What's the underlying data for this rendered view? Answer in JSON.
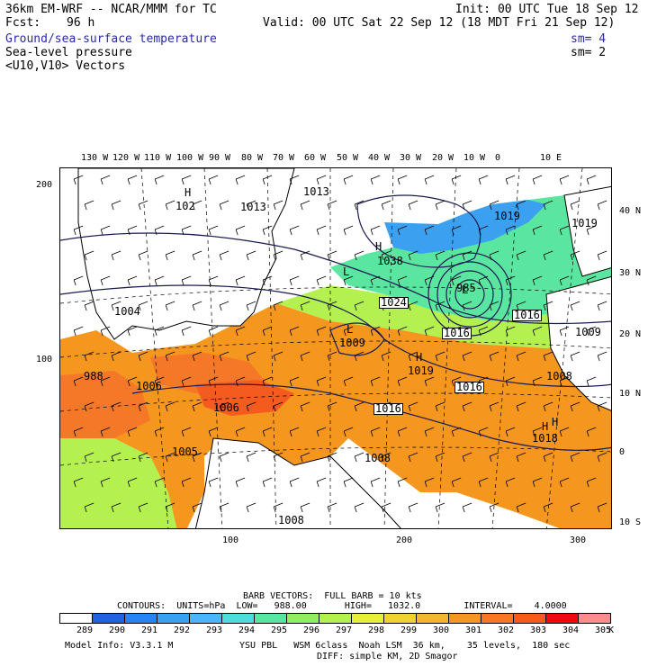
{
  "header": {
    "model": "36km EM-WRF -- NCAR/MMM for TC",
    "init": "Init: 00 UTC Tue 18 Sep 12",
    "fcst_label": "Fcst:",
    "fcst_value": "96 h",
    "valid": "Valid: 00 UTC Sat 22 Sep 12 (18 MDT Fri 21 Sep 12)",
    "fields": [
      {
        "name": "Ground/sea-surface temperature",
        "sm": "sm= 4",
        "color": "#2a2aa8"
      },
      {
        "name": "Sea-level pressure",
        "sm": "sm= 2"
      },
      {
        "name": "<U10,V10> Vectors"
      }
    ]
  },
  "axes": {
    "top_lon": [
      "130 W",
      "120 W",
      "110 W",
      "100 W",
      "90 W",
      "80 W",
      "70 W",
      "60 W",
      "50 W",
      "40 W",
      "30 W",
      "20 W",
      "10 W",
      "0",
      "10 E"
    ],
    "right_lat": [
      "40 N",
      "30 N",
      "20 N",
      "10 N",
      "0",
      "10 S"
    ],
    "left_grid": [
      "200",
      "100"
    ],
    "bottom_grid": [
      "100",
      "200",
      "300"
    ]
  },
  "pressure_labels": [
    {
      "text": "1013",
      "type": "value"
    },
    {
      "text": "1013",
      "type": "value"
    },
    {
      "text": "102",
      "type": "value"
    },
    {
      "text": "1019",
      "type": "value"
    },
    {
      "text": "1019",
      "type": "value"
    },
    {
      "text": "1004",
      "type": "value"
    },
    {
      "text": "988",
      "type": "value"
    },
    {
      "text": "1006",
      "type": "value"
    },
    {
      "text": "1006",
      "type": "value"
    },
    {
      "text": "1005",
      "type": "value"
    },
    {
      "text": "1008",
      "type": "value"
    },
    {
      "text": "1008",
      "type": "value"
    },
    {
      "text": "1009",
      "type": "value"
    },
    {
      "text": "1009",
      "type": "value"
    },
    {
      "text": "1024",
      "type": "boxed"
    },
    {
      "text": "1016",
      "type": "boxed"
    },
    {
      "text": "1016",
      "type": "boxed"
    },
    {
      "text": "1016",
      "type": "boxed"
    },
    {
      "text": "1016",
      "type": "boxed"
    },
    {
      "text": "1019",
      "type": "value"
    },
    {
      "text": "1018",
      "type": "value"
    },
    {
      "text": "1008",
      "type": "value"
    },
    {
      "text": "1038",
      "type": "value"
    },
    {
      "text": "985",
      "type": "value"
    }
  ],
  "centers": [
    {
      "text": "H"
    },
    {
      "text": "H"
    },
    {
      "text": "H"
    },
    {
      "text": "H"
    },
    {
      "text": "L"
    },
    {
      "text": "L"
    },
    {
      "text": "L"
    },
    {
      "text": "H"
    }
  ],
  "footer": {
    "barb": "BARB VECTORS:  FULL BARB = 10 kts",
    "contours": "CONTOURS:  UNITS=hPa  LOW=   988.00       HIGH=   1032.0        INTERVAL=    4.0000",
    "unit": "K",
    "model_info": "Model Info: V3.3.1 M",
    "physics": "YSU PBL   WSM 6class  Noah LSM  36 km,    35 levels,  180 sec",
    "physics2": "DIFF: simple KM, 2D Smagor"
  },
  "colorbar": [
    {
      "label": "289",
      "color": "#ffffff"
    },
    {
      "label": "290",
      "color": "#1e64dc"
    },
    {
      "label": "291",
      "color": "#2882f0"
    },
    {
      "label": "292",
      "color": "#3ca0f0"
    },
    {
      "label": "293",
      "color": "#50b4fa"
    },
    {
      "label": "294",
      "color": "#50dcdc"
    },
    {
      "label": "295",
      "color": "#5ae6a0"
    },
    {
      "label": "296",
      "color": "#8cf064"
    },
    {
      "label": "297",
      "color": "#b4f050"
    },
    {
      "label": "298",
      "color": "#e6f03c"
    },
    {
      "label": "299",
      "color": "#f0d232"
    },
    {
      "label": "300",
      "color": "#f5b432"
    },
    {
      "label": "301",
      "color": "#f59628"
    },
    {
      "label": "302",
      "color": "#f57828"
    },
    {
      "label": "303",
      "color": "#f55a1e"
    },
    {
      "label": "304",
      "color": "#f00a0a"
    },
    {
      "label": "305",
      "color": "#ff8c8c"
    }
  ],
  "colors": {
    "land": "#ffffff",
    "warm_sea": "#f5961e",
    "hot_sea": "#f55a1e",
    "cool_sea": "#5ae6a0",
    "contour": "#1a1a50"
  }
}
